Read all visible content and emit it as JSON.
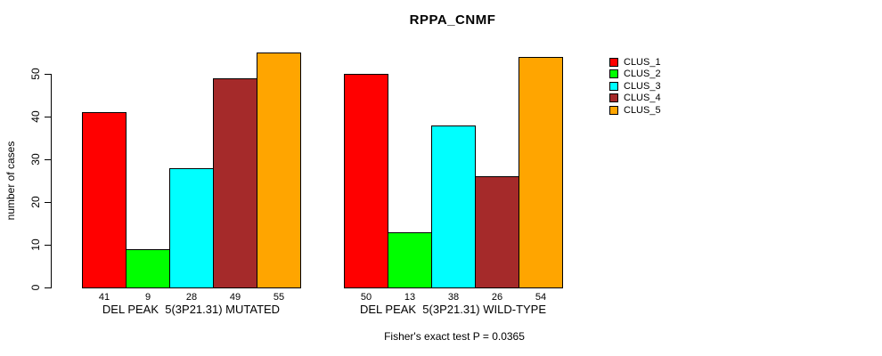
{
  "chart_data": {
    "type": "bar",
    "title": "RPPA_CNMF",
    "ylabel": "number of cases",
    "xlabel": "",
    "annotation": "Fisher's exact test P = 0.0365",
    "ylim": [
      0,
      55
    ],
    "yticks": [
      0,
      10,
      20,
      30,
      40,
      50
    ],
    "grid": false,
    "legend_position": "right-inside-top",
    "categories": [
      "DEL PEAK  5(3P21.31) MUTATED",
      "DEL PEAK  5(3P21.31) WILD-TYPE"
    ],
    "series": [
      {
        "name": "CLUS_1",
        "color": "#ff0000",
        "values": [
          41,
          50
        ]
      },
      {
        "name": "CLUS_2",
        "color": "#00ff00",
        "values": [
          9,
          13
        ]
      },
      {
        "name": "CLUS_3",
        "color": "#00ffff",
        "values": [
          28,
          38
        ]
      },
      {
        "name": "CLUS_4",
        "color": "#a52a2a",
        "values": [
          49,
          26
        ]
      },
      {
        "name": "CLUS_5",
        "color": "#ffa500",
        "values": [
          55,
          54
        ]
      }
    ],
    "bar_value_labels_shown": true
  }
}
